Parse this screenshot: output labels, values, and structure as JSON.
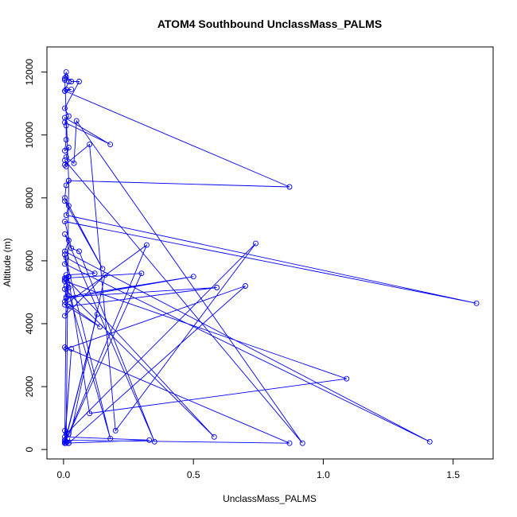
{
  "chart_data": {
    "type": "line",
    "title": "ATOM4 Southbound UnclassMass_PALMS",
    "xlabel": "UnclassMass_PALMS",
    "ylabel": "Altitude (m)",
    "xlim": [
      -0.064,
      1.654
    ],
    "ylim": [
      -300,
      12800
    ],
    "xticks": [
      0,
      0.5,
      1.0,
      1.5
    ],
    "xtick_labels": [
      "0.0",
      "0.5",
      "1.0",
      "1.5"
    ],
    "yticks": [
      0,
      2000,
      4000,
      6000,
      8000,
      10000,
      12000
    ],
    "ytick_labels": [
      "0",
      "2000",
      "4000",
      "6000",
      "8000",
      "10000",
      "12000"
    ],
    "grid": false,
    "line_color": "#0000ff",
    "marker": "open-circle",
    "series": [
      {
        "x": [
          0.005,
          0.01,
          0.02,
          0.005,
          0.01,
          0.03,
          0.005,
          0.87,
          0.02,
          0.005,
          0.01,
          0.03,
          0.06,
          0.005,
          0.02,
          0.005,
          0.18,
          0.005,
          0.01,
          0.01,
          0.005,
          0.02,
          0.01,
          0.04,
          0.05,
          0.92,
          0.005,
          0.01,
          0.005,
          0.1,
          0.2,
          0.74,
          0.01,
          0.005,
          0.01,
          0.02,
          0.01,
          0.005,
          0.15,
          0.005,
          0.02,
          0.01,
          1.59,
          0.005,
          0.03,
          0.06,
          0.35,
          0.005,
          0.02,
          0.005,
          1.41,
          0.005,
          0.01,
          0.12,
          0.01,
          0.005,
          0.02,
          0.005,
          1.09,
          0.1,
          0.005,
          0.18,
          0.005,
          0.02,
          0.005,
          0.14,
          0.005,
          0.32,
          0.005,
          0.3,
          0.01,
          0.58,
          0.005,
          0.01,
          0.5,
          0.01,
          0.59,
          0.02,
          0.005,
          0.16,
          0.02,
          0.7,
          0.01,
          0.005,
          0.87,
          0.005,
          0.02,
          0.005,
          0.33,
          0.005,
          0.13,
          0.005,
          0.01,
          0.005,
          0.03,
          0.005,
          0.005,
          0.01,
          0.02
        ],
        "y": [
          11750,
          12000,
          11700,
          11400,
          11450,
          11450,
          11400,
          8350,
          8550,
          11800,
          11850,
          11700,
          11700,
          10850,
          10600,
          10400,
          9700,
          10550,
          10300,
          9850,
          9500,
          9600,
          9300,
          9100,
          10450,
          200,
          9200,
          9000,
          9050,
          9700,
          600,
          6550,
          500,
          600,
          200,
          8550,
          8400,
          8000,
          5750,
          7900,
          7750,
          7450,
          4650,
          7250,
          6400,
          6300,
          250,
          6850,
          6650,
          6300,
          250,
          5900,
          6100,
          5600,
          5550,
          5450,
          5500,
          5350,
          2250,
          1150,
          6200,
          350,
          5400,
          5150,
          4700,
          3900,
          4600,
          6500,
          200,
          5600,
          5450,
          400,
          5100,
          4800,
          5500,
          4850,
          5150,
          4550,
          4250,
          5550,
          200,
          5200,
          3200,
          3250,
          200,
          300,
          500,
          400,
          300,
          200,
          4300,
          250,
          5200,
          200,
          3200,
          300,
          200,
          250,
          200
        ]
      }
    ]
  }
}
